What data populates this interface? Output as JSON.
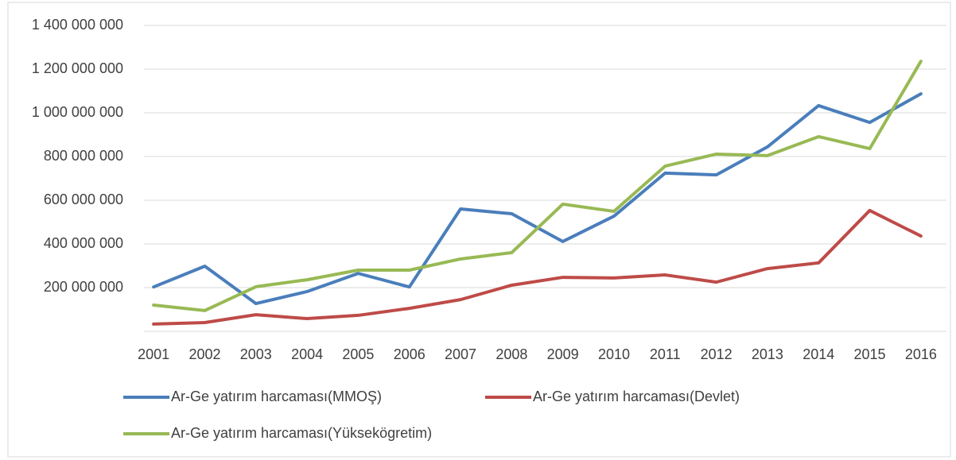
{
  "chart_data": {
    "type": "line",
    "categories": [
      "2001",
      "2002",
      "2003",
      "2004",
      "2005",
      "2006",
      "2007",
      "2008",
      "2009",
      "2010",
      "2011",
      "2012",
      "2013",
      "2014",
      "2015",
      "2016"
    ],
    "series": [
      {
        "name": "Ar-Ge yatırım harcaması(MMOŞ)",
        "color": "#4a7ebb",
        "values": [
          203000000,
          298000000,
          127000000,
          182000000,
          265000000,
          203000000,
          560000000,
          538000000,
          411000000,
          527000000,
          724000000,
          716000000,
          844000000,
          1033000000,
          956000000,
          1087000000
        ]
      },
      {
        "name": "Ar-Ge yatırım harcaması(Devlet)",
        "color": "#be4b48",
        "values": [
          33000000,
          40000000,
          76000000,
          58000000,
          73000000,
          105000000,
          145000000,
          211000000,
          247000000,
          244000000,
          258000000,
          225000000,
          287000000,
          313000000,
          553000000,
          436000000
        ]
      },
      {
        "name": "Ar-Ge yatırım harcaması(Yüksekögretim)",
        "color": "#98b954",
        "values": [
          120000000,
          95000000,
          204000000,
          236000000,
          280000000,
          280000000,
          331000000,
          360000000,
          582000000,
          549000000,
          756000000,
          811000000,
          804000000,
          891000000,
          836000000,
          1236000000
        ]
      }
    ],
    "ylim": [
      0,
      1400000000
    ],
    "yticks": [
      {
        "value": 200000000,
        "label": "200 000 000"
      },
      {
        "value": 400000000,
        "label": "400 000 000"
      },
      {
        "value": 600000000,
        "label": "600 000 000"
      },
      {
        "value": 800000000,
        "label": "800 000 000"
      },
      {
        "value": 1000000000,
        "label": "1 000 000 000"
      },
      {
        "value": 1200000000,
        "label": "1 200 000 000"
      },
      {
        "value": 1400000000,
        "label": "1 400 000 000"
      }
    ],
    "grid": true
  }
}
